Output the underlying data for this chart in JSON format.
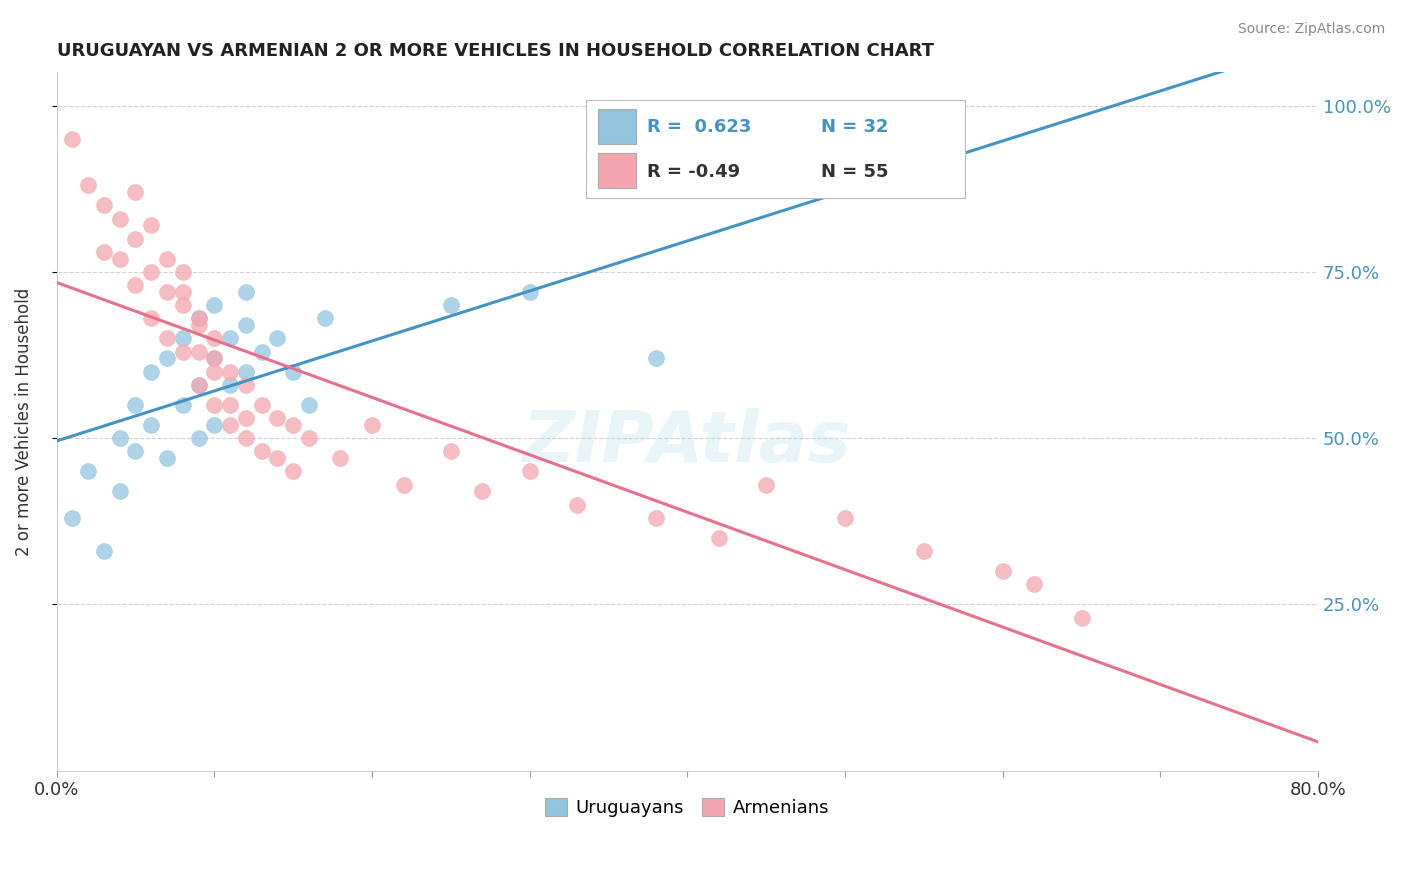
{
  "title": "URUGUAYAN VS ARMENIAN 2 OR MORE VEHICLES IN HOUSEHOLD CORRELATION CHART",
  "source": "Source: ZipAtlas.com",
  "ylabel_label": "2 or more Vehicles in Household",
  "legend_uruguayan": "Uruguayans",
  "legend_armenian": "Armenians",
  "R_uruguayan": 0.623,
  "N_uruguayan": 32,
  "R_armenian": -0.49,
  "N_armenian": 55,
  "uruguayan_color": "#92c5de",
  "armenian_color": "#f4a6b0",
  "uruguayan_line_color": "#4393c3",
  "armenian_line_color": "#e8708a",
  "xlim": [
    0,
    80
  ],
  "ylim": [
    0,
    105
  ],
  "xtick_positions": [
    0,
    10,
    20,
    30,
    40,
    50,
    60,
    70,
    80
  ],
  "xtick_labels_show": {
    "0": "0.0%",
    "80": "80.0%"
  },
  "ytick_positions": [
    25,
    50,
    75,
    100
  ],
  "ytick_labels": [
    "25.0%",
    "50.0%",
    "75.0%",
    "100.0%"
  ],
  "uruguayan_x": [
    1,
    2,
    3,
    4,
    4,
    5,
    5,
    6,
    6,
    7,
    7,
    8,
    8,
    9,
    9,
    9,
    10,
    10,
    10,
    11,
    11,
    12,
    12,
    12,
    13,
    14,
    15,
    16,
    17,
    25,
    30,
    38
  ],
  "uruguayan_y": [
    38,
    45,
    33,
    42,
    50,
    48,
    55,
    52,
    60,
    47,
    62,
    55,
    65,
    50,
    58,
    68,
    52,
    62,
    70,
    58,
    65,
    60,
    67,
    72,
    63,
    65,
    60,
    55,
    68,
    70,
    72,
    62
  ],
  "armenian_x": [
    1,
    2,
    3,
    3,
    4,
    4,
    5,
    5,
    5,
    6,
    6,
    6,
    7,
    7,
    7,
    8,
    8,
    8,
    8,
    9,
    9,
    9,
    9,
    10,
    10,
    10,
    10,
    11,
    11,
    11,
    12,
    12,
    12,
    13,
    13,
    14,
    14,
    15,
    15,
    16,
    18,
    20,
    22,
    25,
    27,
    30,
    33,
    38,
    42,
    45,
    50,
    55,
    60,
    62,
    65
  ],
  "armenian_y": [
    95,
    88,
    85,
    78,
    83,
    77,
    87,
    80,
    73,
    82,
    75,
    68,
    77,
    72,
    65,
    75,
    70,
    63,
    72,
    68,
    63,
    58,
    67,
    65,
    60,
    55,
    62,
    60,
    55,
    52,
    58,
    53,
    50,
    55,
    48,
    53,
    47,
    52,
    45,
    50,
    47,
    52,
    43,
    48,
    42,
    45,
    40,
    38,
    35,
    43,
    38,
    33,
    30,
    28,
    23
  ]
}
